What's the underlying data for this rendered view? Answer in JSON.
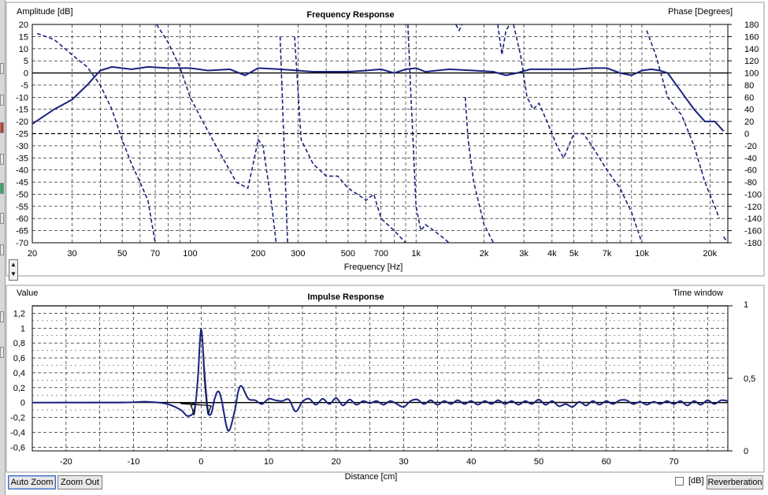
{
  "chart_data": [
    {
      "type": "line",
      "title": "Frequency Response",
      "ylabel": "Amplitude [dB]",
      "y2label": "Phase [Degrees]",
      "xlabel": "Frequency [Hz]",
      "xscale": "log",
      "xlim": [
        20,
        24000
      ],
      "ylim": [
        -70,
        20
      ],
      "y2lim": [
        -180,
        180
      ],
      "x_ticks": [
        20,
        30,
        50,
        70,
        100,
        200,
        300,
        500,
        700,
        1000,
        2000,
        3000,
        4000,
        5000,
        7000,
        10000,
        20000
      ],
      "x_tick_labels": [
        "20",
        "30",
        "50",
        "70",
        "100",
        "200",
        "300",
        "500",
        "700",
        "1k",
        "2k",
        "3k",
        "4k",
        "5k",
        "7k",
        "10k",
        "20k"
      ],
      "y_ticks": [
        20,
        15,
        10,
        5,
        0,
        -5,
        -10,
        -15,
        -20,
        -25,
        -30,
        -35,
        -40,
        -45,
        -50,
        -55,
        -60,
        -65,
        -70
      ],
      "y2_ticks": [
        180,
        160,
        140,
        120,
        100,
        80,
        60,
        40,
        20,
        0,
        -20,
        -40,
        -60,
        -80,
        -100,
        -120,
        -140,
        -160,
        -180
      ],
      "series": [
        {
          "style": "solid",
          "axis": "left",
          "points": [
            [
              20,
              -21
            ],
            [
              25,
              -15
            ],
            [
              30,
              -11
            ],
            [
              35,
              -5
            ],
            [
              40,
              1
            ],
            [
              45,
              2.5
            ],
            [
              55,
              1.5
            ],
            [
              65,
              2.5
            ],
            [
              80,
              2
            ],
            [
              100,
              2
            ],
            [
              120,
              1
            ],
            [
              150,
              1.5
            ],
            [
              175,
              -1
            ],
            [
              200,
              2
            ],
            [
              250,
              1.5
            ],
            [
              300,
              1
            ],
            [
              350,
              0.5
            ],
            [
              400,
              0.5
            ],
            [
              500,
              0.5
            ],
            [
              600,
              1
            ],
            [
              700,
              1.5
            ],
            [
              800,
              0
            ],
            [
              900,
              1.5
            ],
            [
              1000,
              2
            ],
            [
              1100,
              0.5
            ],
            [
              1400,
              1.5
            ],
            [
              1800,
              1
            ],
            [
              2200,
              0.5
            ],
            [
              2500,
              -1
            ],
            [
              2800,
              0
            ],
            [
              3200,
              1.5
            ],
            [
              4000,
              1.5
            ],
            [
              5000,
              1.5
            ],
            [
              6000,
              2
            ],
            [
              7000,
              2
            ],
            [
              8000,
              0
            ],
            [
              9000,
              -1
            ],
            [
              10000,
              1
            ],
            [
              11000,
              1.5
            ],
            [
              12000,
              1
            ],
            [
              13000,
              0
            ],
            [
              15000,
              -8
            ],
            [
              17000,
              -15
            ],
            [
              19000,
              -20
            ],
            [
              21000,
              -20
            ],
            [
              23000,
              -24
            ]
          ]
        },
        {
          "style": "dashed",
          "axis": "right",
          "segments": [
            [
              [
                21,
                165
              ],
              [
                25,
                155
              ],
              [
                30,
                130
              ],
              [
                35,
                110
              ],
              [
                40,
                80
              ],
              [
                45,
                40
              ],
              [
                50,
                -10
              ],
              [
                55,
                -50
              ],
              [
                60,
                -80
              ],
              [
                65,
                -110
              ],
              [
                70,
                -180
              ]
            ],
            [
              [
                71,
                180
              ],
              [
                80,
                150
              ],
              [
                90,
                110
              ],
              [
                100,
                60
              ],
              [
                110,
                30
              ],
              [
                130,
                -20
              ],
              [
                160,
                -80
              ],
              [
                180,
                -90
              ],
              [
                190,
                -50
              ],
              [
                200,
                -10
              ],
              [
                210,
                -20
              ],
              [
                230,
                -120
              ],
              [
                240,
                -180
              ]
            ],
            [
              [
                250,
                160
              ],
              [
                270,
                -180
              ]
            ],
            [
              [
                290,
                160
              ],
              [
                310,
                -10
              ],
              [
                350,
                -50
              ],
              [
                400,
                -70
              ],
              [
                450,
                -70
              ],
              [
                500,
                -90
              ],
              [
                550,
                -100
              ],
              [
                600,
                -110
              ],
              [
                650,
                -100
              ],
              [
                700,
                -140
              ],
              [
                800,
                -160
              ],
              [
                900,
                -180
              ]
            ],
            [
              [
                920,
                180
              ],
              [
                950,
                60
              ],
              [
                1000,
                -120
              ],
              [
                1050,
                -160
              ],
              [
                1100,
                -150
              ],
              [
                1200,
                -160
              ],
              [
                1300,
                -170
              ],
              [
                1400,
                -180
              ]
            ],
            [
              [
                1500,
                180
              ],
              [
                1550,
                170
              ],
              [
                1600,
                180
              ]
            ],
            [
              [
                1650,
                60
              ],
              [
                1700,
                -10
              ],
              [
                1800,
                -80
              ],
              [
                2000,
                -150
              ],
              [
                2200,
                -180
              ]
            ],
            [
              [
                2300,
                180
              ],
              [
                2400,
                130
              ],
              [
                2500,
                170
              ],
              [
                2600,
                180
              ]
            ],
            [
              [
                2700,
                180
              ],
              [
                2900,
                130
              ],
              [
                3100,
                60
              ],
              [
                3300,
                40
              ],
              [
                3500,
                50
              ],
              [
                3800,
                20
              ],
              [
                4200,
                -20
              ],
              [
                4500,
                -40
              ],
              [
                5000,
                0
              ],
              [
                5500,
                0
              ],
              [
                6000,
                -20
              ],
              [
                7000,
                -60
              ],
              [
                8000,
                -90
              ],
              [
                9000,
                -130
              ],
              [
                10000,
                -180
              ]
            ],
            [
              [
                10500,
                170
              ],
              [
                11500,
                130
              ],
              [
                13000,
                60
              ],
              [
                15000,
                30
              ],
              [
                17000,
                -20
              ],
              [
                19000,
                -80
              ],
              [
                21000,
                -120
              ],
              [
                22000,
                -140
              ]
            ],
            [
              [
                23000,
                -170
              ],
              [
                24000,
                -180
              ]
            ]
          ]
        }
      ]
    },
    {
      "type": "line",
      "title": "Impulse Response",
      "ylabel": "Value",
      "y2label": "Time window",
      "xlabel": "Distance [cm]",
      "xlim": [
        -25,
        78
      ],
      "ylim": [
        -0.65,
        1.3
      ],
      "y2lim": [
        0,
        1
      ],
      "x_ticks": [
        -20,
        -10,
        0,
        10,
        20,
        30,
        40,
        50,
        60,
        70
      ],
      "y_ticks": [
        1.2,
        1,
        0.8,
        0.6,
        0.4,
        0.2,
        0,
        -0.2,
        -0.4,
        -0.6
      ],
      "y_tick_labels": [
        "1,2",
        "1",
        "0,8",
        "0,6",
        "0,4",
        "0,2",
        "0",
        "-0,2",
        "-0,4",
        "-0,6"
      ],
      "y2_ticks": [
        1,
        0.5,
        0
      ],
      "y2_tick_labels": [
        "1",
        "0,5",
        "0"
      ],
      "series": [
        {
          "style": "solid",
          "color": "#000000",
          "points": [
            [
              -25,
              0
            ],
            [
              -3,
              0
            ],
            [
              -1.5,
              -0.05
            ],
            [
              -1,
              -0.15
            ],
            [
              -0.5,
              0.3
            ],
            [
              0,
              1.0
            ],
            [
              0.5,
              0.3
            ],
            [
              1,
              -0.15
            ],
            [
              1.5,
              -0.05
            ],
            [
              3,
              0
            ],
            [
              78,
              0
            ]
          ]
        },
        {
          "style": "solid",
          "color": "#1a237e",
          "points": [
            [
              -25,
              0
            ],
            [
              -12,
              0
            ],
            [
              -8,
              0.01
            ],
            [
              -5,
              -0.02
            ],
            [
              -3,
              -0.1
            ],
            [
              -2,
              -0.18
            ],
            [
              -1,
              -0.1
            ],
            [
              -0.5,
              0.3
            ],
            [
              0,
              0.98
            ],
            [
              0.5,
              0.4
            ],
            [
              1,
              -0.1
            ],
            [
              1.5,
              -0.15
            ],
            [
              2,
              0.05
            ],
            [
              2.5,
              0.15
            ],
            [
              3,
              0.05
            ],
            [
              4,
              -0.38
            ],
            [
              5,
              -0.1
            ],
            [
              5.5,
              0.15
            ],
            [
              6,
              0.22
            ],
            [
              7,
              0.05
            ],
            [
              8,
              0.03
            ],
            [
              9,
              -0.02
            ],
            [
              10,
              0.05
            ],
            [
              11,
              0.03
            ],
            [
              12,
              0.02
            ],
            [
              13,
              0.04
            ],
            [
              14,
              -0.12
            ],
            [
              15,
              0.01
            ],
            [
              16,
              0.05
            ],
            [
              17,
              -0.03
            ],
            [
              18,
              0.05
            ],
            [
              19,
              -0.02
            ],
            [
              20,
              0.06
            ],
            [
              21,
              -0.04
            ],
            [
              22,
              0.04
            ],
            [
              23,
              -0.03
            ],
            [
              24,
              0.02
            ],
            [
              25,
              -0.01
            ],
            [
              26,
              0.02
            ],
            [
              27,
              -0.03
            ],
            [
              28,
              0.02
            ],
            [
              29,
              -0.02
            ],
            [
              30,
              -0.06
            ],
            [
              31,
              0.02
            ],
            [
              32,
              0.04
            ],
            [
              33,
              -0.02
            ],
            [
              34,
              0.03
            ],
            [
              35,
              -0.03
            ],
            [
              36,
              0.02
            ],
            [
              37,
              -0.02
            ],
            [
              38,
              0.03
            ],
            [
              39,
              -0.02
            ],
            [
              40,
              0.02
            ],
            [
              41,
              -0.03
            ],
            [
              42,
              0.02
            ],
            [
              43,
              -0.02
            ],
            [
              44,
              0.03
            ],
            [
              45,
              -0.02
            ],
            [
              46,
              0.02
            ],
            [
              47,
              -0.03
            ],
            [
              48,
              0.02
            ],
            [
              49,
              -0.02
            ],
            [
              50,
              0.04
            ],
            [
              51,
              -0.03
            ],
            [
              52,
              0.02
            ],
            [
              53,
              -0.05
            ],
            [
              54,
              -0.02
            ],
            [
              55,
              -0.06
            ],
            [
              56,
              0.01
            ],
            [
              57,
              -0.04
            ],
            [
              58,
              0.02
            ],
            [
              59,
              -0.03
            ],
            [
              60,
              0.02
            ],
            [
              61,
              -0.02
            ],
            [
              62,
              0.03
            ],
            [
              63,
              0.03
            ],
            [
              64,
              -0.02
            ],
            [
              65,
              0.01
            ],
            [
              66,
              -0.03
            ],
            [
              67,
              0.01
            ],
            [
              68,
              -0.02
            ],
            [
              69,
              0.02
            ],
            [
              70,
              -0.02
            ],
            [
              71,
              0.02
            ],
            [
              72,
              -0.04
            ],
            [
              73,
              0.02
            ],
            [
              74,
              -0.03
            ],
            [
              75,
              0.03
            ],
            [
              76,
              -0.02
            ],
            [
              77,
              0.03
            ],
            [
              78,
              0.02
            ]
          ]
        },
        {
          "style": "solid",
          "color": "#000000",
          "axis": "right",
          "points": [
            [
              -25,
              1
            ],
            [
              78,
              1
            ]
          ]
        }
      ]
    }
  ],
  "controls": {
    "auto_zoom": "Auto Zoom",
    "zoom_out": "Zoom Out",
    "db_label": "[dB]",
    "reverberation": "Reverberation"
  },
  "colors": {
    "curve": "#1a237e",
    "grid": "#000000",
    "reference": "#000000"
  }
}
